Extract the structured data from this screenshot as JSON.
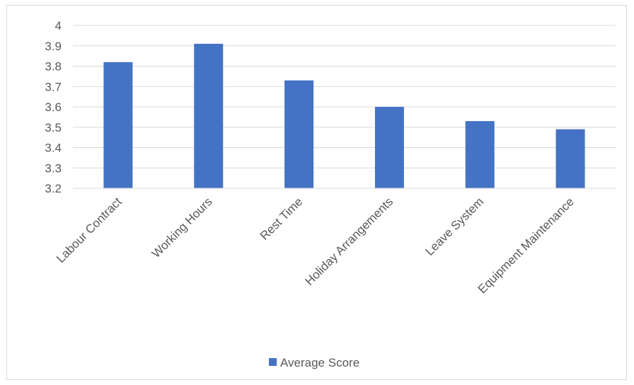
{
  "chart_data": {
    "type": "bar",
    "categories": [
      "Labour Contract",
      "Working Hours",
      "Rest Time",
      "Holiday Arrangements",
      "Leave System",
      "Equipment Maintenance"
    ],
    "series": [
      {
        "name": "Average Score",
        "values": [
          3.82,
          3.91,
          3.73,
          3.6,
          3.53,
          3.49
        ],
        "color": "#4472C4"
      }
    ],
    "yticks": [
      "3.2",
      "3.3",
      "3.4",
      "3.5",
      "3.6",
      "3.7",
      "3.8",
      "3.9",
      "4"
    ],
    "ylim": [
      3.2,
      4.0
    ],
    "grid": true,
    "legend_position": "bottom"
  }
}
